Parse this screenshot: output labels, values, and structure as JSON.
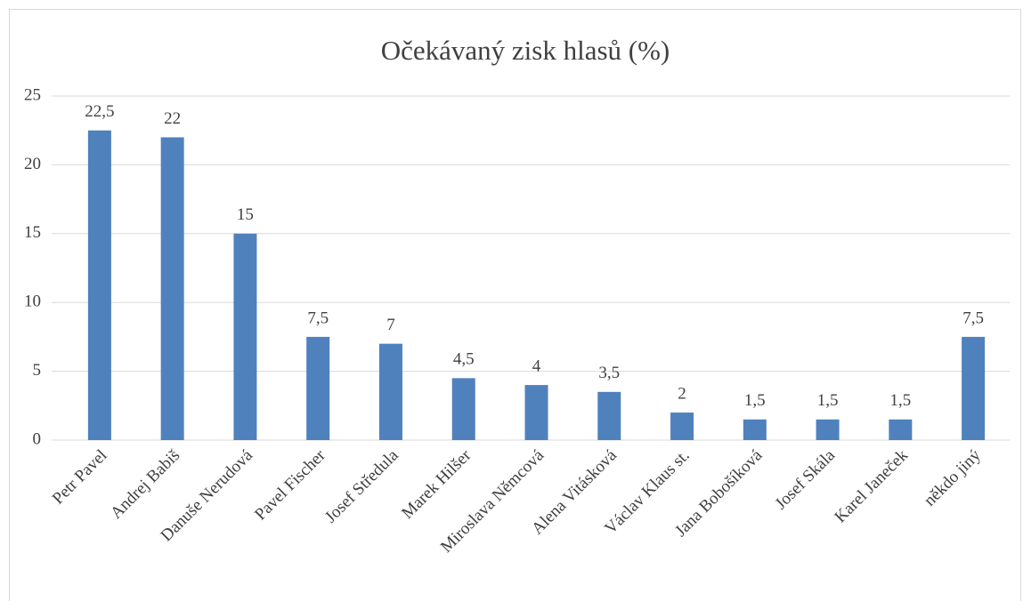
{
  "chart_data": {
    "type": "bar",
    "title": "Očekávaný zisk hlasů (%)",
    "categories": [
      "Petr Pavel",
      "Andrej Babiš",
      "Danuše Nerudová",
      "Pavel Fischer",
      "Josef Středula",
      "Marek Hilšer",
      "Miroslava Němcová",
      "Alena Vitásková",
      "Václav Klaus st.",
      "Jana Bobošíková",
      "Josef Skála",
      "Karel Janeček",
      "někdo jiný"
    ],
    "values": [
      22.5,
      22,
      15,
      7.5,
      7,
      4.5,
      4,
      3.5,
      2,
      1.5,
      1.5,
      1.5,
      7.5
    ],
    "value_labels": [
      "22,5",
      "22",
      "15",
      "7,5",
      "7",
      "4,5",
      "4",
      "3,5",
      "2",
      "1,5",
      "1,5",
      "1,5",
      "7,5"
    ],
    "color": "#4f81bd",
    "ylim": [
      0,
      25
    ],
    "yticks": [
      0,
      5,
      10,
      15,
      20,
      25
    ],
    "grid": true
  }
}
